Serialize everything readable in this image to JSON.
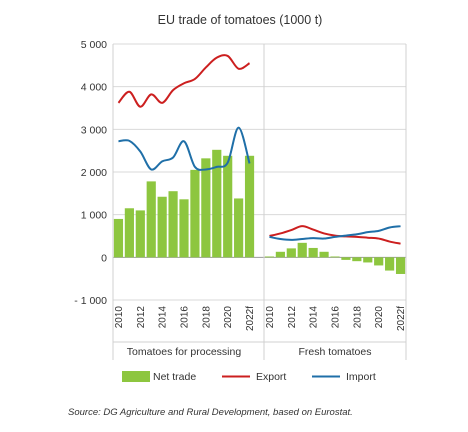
{
  "chart_data": {
    "type": "bar",
    "title": "EU trade of tomatoes (1000 t)",
    "xlabel": "",
    "ylabel": "",
    "ylim": [
      -1000,
      5000
    ],
    "yticks": [
      5000,
      4000,
      3000,
      2000,
      1000,
      0,
      -1000
    ],
    "ytick_labels": [
      "5 000",
      "4 000",
      "3 000",
      "2 000",
      "1 000",
      "0",
      "- 1 000"
    ],
    "grid": true,
    "legend_position": "bottom",
    "groups": [
      {
        "name": "Tomatoes for processing",
        "years": [
          "2010",
          "2011",
          "2012",
          "2013",
          "2014",
          "2015",
          "2016",
          "2017",
          "2018",
          "2019",
          "2020",
          "2021",
          "2022f"
        ],
        "tick_labels": [
          "2010",
          "2012",
          "2014",
          "2016",
          "2018",
          "2020",
          "2022f"
        ],
        "series": [
          {
            "name": "Net trade",
            "type": "bar",
            "color": "#8dc63f",
            "values": [
              900,
              1150,
              1100,
              1780,
              1420,
              1550,
              1360,
              2050,
              2320,
              2520,
              2380,
              1380,
              2380
            ]
          },
          {
            "name": "Export",
            "type": "line",
            "color": "#cc1f1f",
            "values": [
              3620,
              3880,
              3530,
              3820,
              3620,
              3920,
              4080,
              4180,
              4450,
              4680,
              4720,
              4420,
              4550
            ]
          },
          {
            "name": "Import",
            "type": "line",
            "color": "#1f6fa8",
            "values": [
              2720,
              2730,
              2480,
              2060,
              2250,
              2340,
              2720,
              2120,
              2060,
              2120,
              2220,
              3040,
              2200
            ]
          }
        ]
      },
      {
        "name": "Fresh tomatoes",
        "years": [
          "2010",
          "2011",
          "2012",
          "2013",
          "2014",
          "2015",
          "2016",
          "2017",
          "2018",
          "2019",
          "2020",
          "2021",
          "2022f"
        ],
        "tick_labels": [
          "2010",
          "2012",
          "2014",
          "2016",
          "2018",
          "2020",
          "2022f"
        ],
        "series": [
          {
            "name": "Net trade",
            "type": "bar",
            "color": "#8dc63f",
            "values": [
              20,
              130,
              210,
              340,
              220,
              130,
              20,
              -60,
              -90,
              -120,
              -190,
              -310,
              -390
            ]
          },
          {
            "name": "Export",
            "type": "line",
            "color": "#cc1f1f",
            "values": [
              500,
              560,
              640,
              730,
              650,
              560,
              510,
              490,
              480,
              460,
              440,
              370,
              320
            ]
          },
          {
            "name": "Import",
            "type": "line",
            "color": "#1f6fa8",
            "values": [
              480,
              430,
              410,
              430,
              450,
              440,
              480,
              510,
              540,
              590,
              620,
              700,
              730
            ]
          }
        ]
      }
    ],
    "legend": [
      {
        "name": "Net trade",
        "kind": "bar",
        "color": "#8dc63f"
      },
      {
        "name": "Export",
        "kind": "line",
        "color": "#cc1f1f"
      },
      {
        "name": "Import",
        "kind": "line",
        "color": "#1f6fa8"
      }
    ]
  },
  "source": "Source: DG Agriculture and Rural Development, based on Eurostat."
}
